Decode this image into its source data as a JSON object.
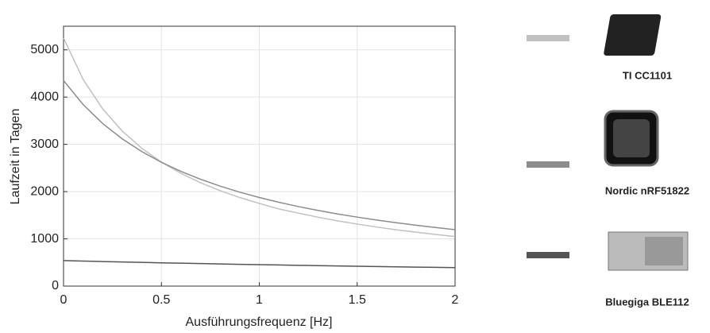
{
  "chart_data": {
    "type": "line",
    "xlabel": "Ausführungsfrequenz [Hz]",
    "ylabel": "Laufzeit in Tagen",
    "x": [
      0,
      0.1,
      0.2,
      0.3,
      0.4,
      0.5,
      0.6,
      0.7,
      0.8,
      0.9,
      1,
      1.1,
      1.2,
      1.3,
      1.4,
      1.5,
      1.6,
      1.7,
      1.8,
      1.9,
      2
    ],
    "series": [
      {
        "name": "TI CC1101",
        "color": "#c0c0c0",
        "values": [
          5250,
          4375,
          3750,
          3281,
          2917,
          2625,
          2386,
          2188,
          2019,
          1875,
          1750,
          1633,
          1544,
          1458,
          1382,
          1313,
          1250,
          1193,
          1141,
          1094,
          1050
        ]
      },
      {
        "name": "Nordic nRF51822",
        "color": "#8c8c8c",
        "values": [
          4350,
          3843,
          3441,
          3116,
          2847,
          2620,
          2427,
          2261,
          2116,
          1988,
          1875,
          1774,
          1683,
          1602,
          1527,
          1460,
          1398,
          1341,
          1289,
          1240,
          1195
        ]
      },
      {
        "name": "Bluegiga BLE112",
        "color": "#555555",
        "values": [
          540,
          530,
          520,
          511,
          502,
          493,
          485,
          477,
          469,
          461,
          454,
          447,
          440,
          433,
          427,
          420,
          414,
          408,
          402,
          397,
          391
        ]
      }
    ],
    "xlim": [
      0,
      2
    ],
    "xticks": [
      0,
      0.5,
      1,
      1.5,
      2
    ],
    "ylim": [
      0,
      5500
    ],
    "yticks": [
      0,
      1000,
      2000,
      3000,
      4000,
      5000
    ],
    "grid": true
  }
}
